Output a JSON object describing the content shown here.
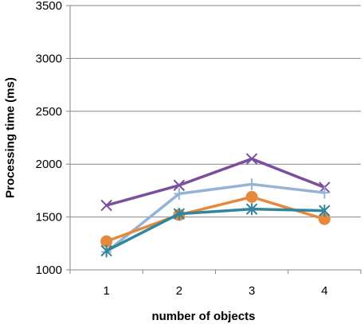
{
  "chart_data": {
    "type": "line",
    "title": "",
    "xlabel": "number of objects",
    "ylabel": "Processing time (ms)",
    "categories": [
      "1",
      "2",
      "3",
      "4"
    ],
    "ylim": [
      1000,
      3500
    ],
    "yticks": [
      1000,
      1500,
      2000,
      2500,
      3000,
      3500
    ],
    "grid": "horizontal",
    "legend": "none",
    "series": [
      {
        "color": "#7b4f9d",
        "marker": "x",
        "values": [
          1610,
          1800,
          2050,
          1780
        ]
      },
      {
        "color": "#95b3d7",
        "marker": "plus",
        "values": [
          1170,
          1720,
          1810,
          1730
        ]
      },
      {
        "color": "#e5893f",
        "marker": "circle",
        "values": [
          1270,
          1520,
          1690,
          1480
        ]
      },
      {
        "color": "#31859c",
        "marker": "asterisk",
        "values": [
          1180,
          1530,
          1575,
          1560
        ]
      }
    ]
  }
}
